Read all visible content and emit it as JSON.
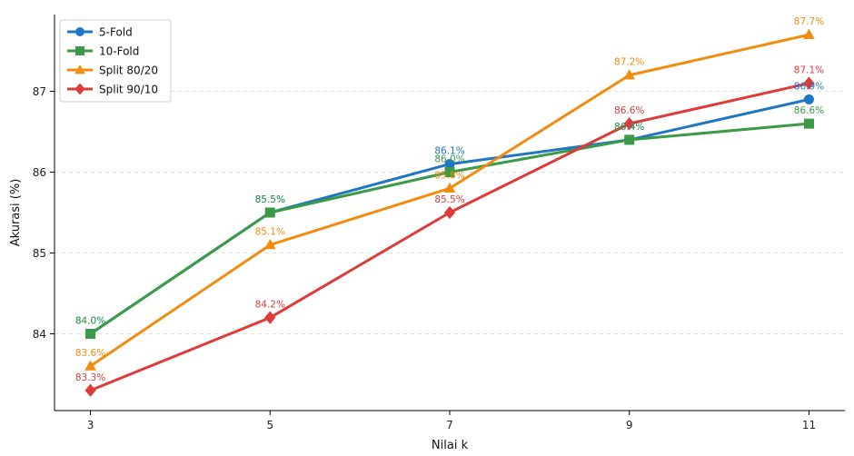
{
  "chart_data": {
    "type": "line",
    "x": [
      3,
      5,
      7,
      9,
      11
    ],
    "xlabel": "Nilai k",
    "ylabel": "Akurasi (%)",
    "xticks": [
      3,
      5,
      7,
      9,
      11
    ],
    "yticks": [
      84,
      85,
      86,
      87
    ],
    "ylim": [
      83.05,
      87.95
    ],
    "grid": "horizontal dashed",
    "legend_position": "top-left",
    "series": [
      {
        "name": "5-Fold",
        "color": "#1f77c4",
        "marker": "circle",
        "values": [
          84.0,
          85.5,
          86.1,
          86.4,
          86.9
        ],
        "labels": [
          "84.0%",
          "85.5%",
          "86.1%",
          "86.4%",
          "86.9%"
        ]
      },
      {
        "name": "10-Fold",
        "color": "#3a9a47",
        "marker": "square",
        "values": [
          84.0,
          85.5,
          86.0,
          86.4,
          86.6
        ],
        "labels": [
          "84.0%",
          "85.5%",
          "86.0%",
          "86.4%",
          "86.6%"
        ]
      },
      {
        "name": "Split 80/20",
        "color": "#f28c0f",
        "marker": "triangle",
        "values": [
          83.6,
          85.1,
          85.8,
          87.2,
          87.7
        ],
        "labels": [
          "83.6%",
          "85.1%",
          "85.8%",
          "87.2%",
          "87.7%"
        ]
      },
      {
        "name": "Split 90/10",
        "color": "#de3b3b",
        "marker": "diamond",
        "values": [
          83.3,
          84.2,
          85.5,
          86.6,
          87.1
        ],
        "labels": [
          "83.3%",
          "84.2%",
          "85.5%",
          "86.6%",
          "87.1%"
        ]
      }
    ]
  }
}
